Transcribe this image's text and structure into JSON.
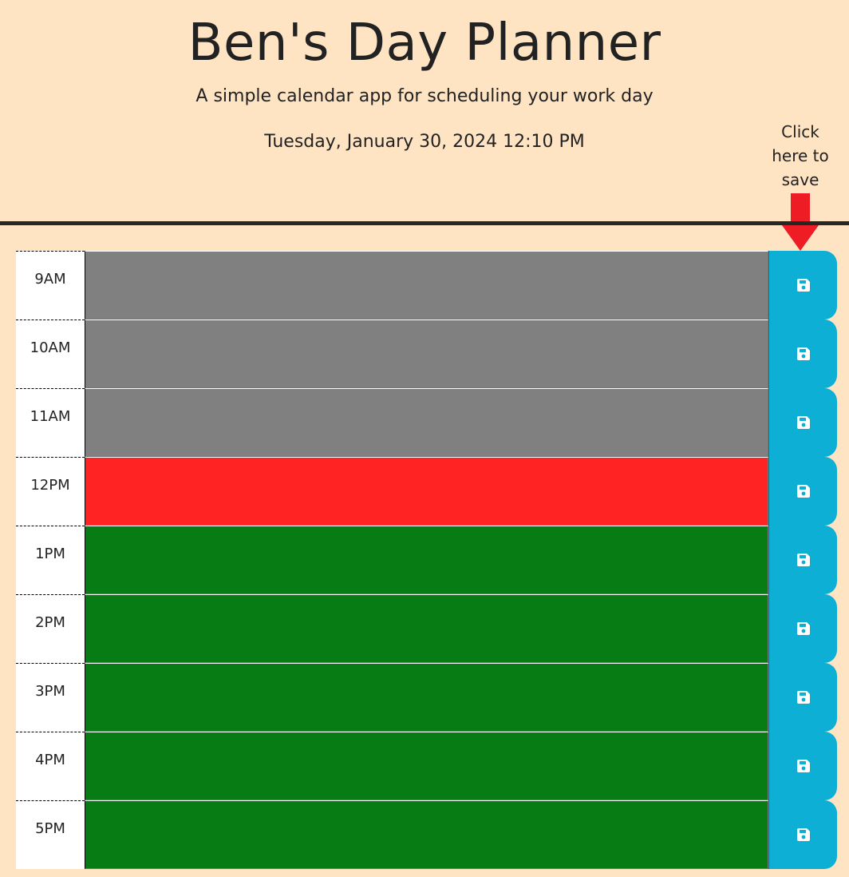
{
  "header": {
    "title": "Ben's Day Planner",
    "lead": "A simple calendar app for scheduling your work day",
    "current_day": "Tuesday, January 30, 2024 12:10 PM"
  },
  "save_hint": {
    "line1": "Click",
    "line2": "here to",
    "line3": "save"
  },
  "colors": {
    "background": "#ffe4c4",
    "past": "#808080",
    "present": "#ff2323",
    "future": "#077c15",
    "save_button": "#0eafd4",
    "arrow": "#ee1c25"
  },
  "hours": [
    {
      "label": "9AM",
      "state": "past",
      "text": ""
    },
    {
      "label": "10AM",
      "state": "past",
      "text": ""
    },
    {
      "label": "11AM",
      "state": "past",
      "text": ""
    },
    {
      "label": "12PM",
      "state": "present",
      "text": ""
    },
    {
      "label": "1PM",
      "state": "future",
      "text": ""
    },
    {
      "label": "2PM",
      "state": "future",
      "text": ""
    },
    {
      "label": "3PM",
      "state": "future",
      "text": ""
    },
    {
      "label": "4PM",
      "state": "future",
      "text": ""
    },
    {
      "label": "5PM",
      "state": "future",
      "text": ""
    }
  ],
  "icons": {
    "save": "floppy-disk-icon",
    "hint_arrow": "arrow-down-icon"
  }
}
